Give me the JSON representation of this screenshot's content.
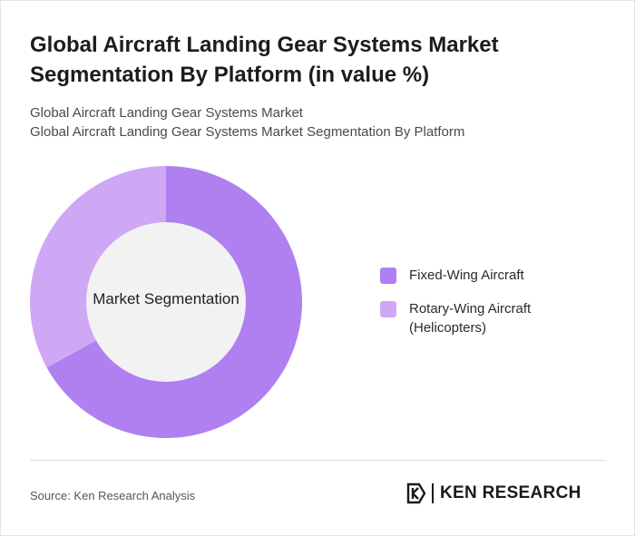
{
  "title": "Global Aircraft Landing Gear Systems Market Segmentation By Platform (in value %)",
  "subtitle_lines": [
    "Global Aircraft Landing Gear Systems Market",
    "Global Aircraft Landing Gear Systems Market Segmentation By Platform"
  ],
  "center_label": "Market Segmentation",
  "colors": {
    "fixed_wing": "#b07ff0",
    "rotary_wing": "#cfa8f5",
    "hole": "#f2f2f2"
  },
  "chart_data": {
    "type": "pie",
    "variant": "donut",
    "title": "",
    "categories": [
      "Fixed-Wing Aircraft",
      "Rotary-Wing Aircraft (Helicopters)"
    ],
    "values": [
      67,
      33
    ],
    "legend_position": "right"
  },
  "legend": [
    {
      "label": "Fixed-Wing Aircraft"
    },
    {
      "label": "Rotary-Wing Aircraft (Helicopters)"
    }
  ],
  "source": "Source: Ken Research Analysis",
  "logo": {
    "text": "KEN RESEARCH"
  }
}
